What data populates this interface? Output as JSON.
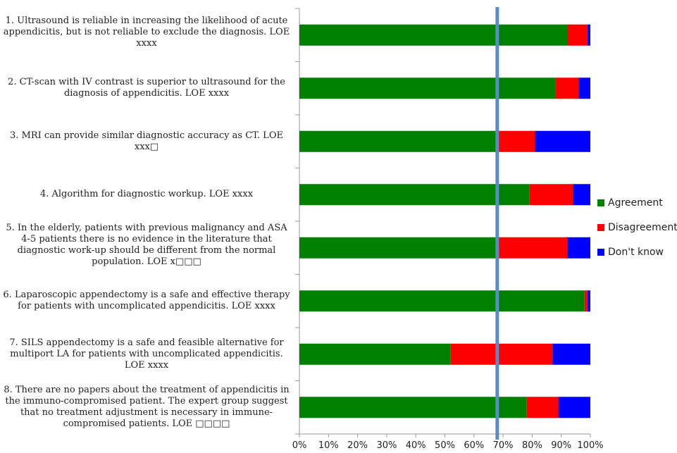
{
  "chart_data": {
    "type": "bar",
    "orientation": "horizontal",
    "stacked": true,
    "xlim": [
      0,
      100
    ],
    "x_ticks": [
      "0%",
      "10%",
      "20%",
      "30%",
      "40%",
      "50%",
      "60%",
      "70%",
      "80%",
      "90%",
      "100%"
    ],
    "reference_line": 68,
    "categories": [
      "1. Ultrasound is reliable in increasing the likelihood of acute appendicitis, but is not reliable to exclude the diagnosis. LOE xxxx",
      "2. CT-scan with IV contrast is superior to ultrasound for the diagnosis of appendicitis. LOE xxxx",
      "3. MRI can provide similar diagnostic accuracy as CT. LOE xxx□",
      "4. Algorithm for diagnostic workup. LOE xxxx",
      "5. In the elderly, patients with previous malignancy and ASA 4-5 patients there is no evidence in the literature that diagnostic work-up should be different from the normal population. LOE x□□□",
      "6. Laparoscopic appendectomy is a safe and effective therapy for patients with uncomplicated appendicitis. LOE xxxx",
      "7. SILS appendectomy is a safe and feasible alternative for multiport LA for patients with uncomplicated appendicitis. LOE xxxx",
      "8. There are no papers about the treatment of appendicitis in the immuno-compromised patient. The expert group suggest that no treatment adjustment is necessary in immune-compromised patients. LOE □□□□"
    ],
    "series": [
      {
        "name": "Agreement",
        "color": "#008000",
        "values": [
          92,
          88,
          68,
          79,
          68,
          98,
          52,
          78
        ]
      },
      {
        "name": "Disagreement",
        "color": "#ff0000",
        "values": [
          7,
          8,
          13,
          15,
          24,
          1,
          35,
          11
        ]
      },
      {
        "name": "Don't know",
        "color": "#0000ff",
        "values": [
          1,
          4,
          19,
          6,
          8,
          1,
          13,
          11
        ]
      }
    ],
    "legend_position": "right",
    "grid": false
  }
}
